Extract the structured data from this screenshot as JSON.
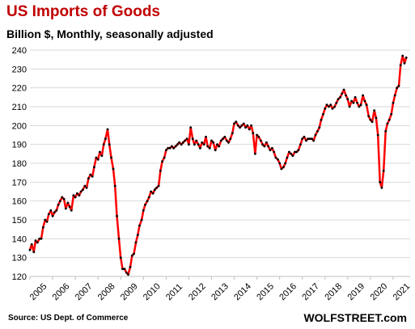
{
  "chart_data": {
    "type": "line",
    "title": "US Imports of Goods",
    "subtitle": "Billion $, Monthly, seasonally adjusted",
    "xlabel": "",
    "ylabel": "",
    "ylim": [
      120,
      240
    ],
    "yticks": [
      120,
      130,
      140,
      150,
      160,
      170,
      180,
      190,
      200,
      210,
      220,
      230,
      240
    ],
    "xlim": [
      2005.0,
      2021.75
    ],
    "xticks": [
      "2005",
      "2006",
      "2007",
      "2008",
      "2009",
      "2010",
      "2011",
      "2012",
      "2013",
      "2014",
      "2015",
      "2016",
      "2017",
      "2018",
      "2019",
      "2020",
      "2021"
    ],
    "grid": true,
    "line_color": "#ff0000",
    "marker_color": "#000000",
    "series": [
      {
        "name": "",
        "x": [
          2005.0,
          2005.08,
          2005.17,
          2005.25,
          2005.33,
          2005.42,
          2005.5,
          2005.58,
          2005.67,
          2005.75,
          2005.83,
          2005.92,
          2006.0,
          2006.08,
          2006.17,
          2006.25,
          2006.33,
          2006.42,
          2006.5,
          2006.58,
          2006.67,
          2006.75,
          2006.83,
          2006.92,
          2007.0,
          2007.08,
          2007.17,
          2007.25,
          2007.33,
          2007.42,
          2007.5,
          2007.58,
          2007.67,
          2007.75,
          2007.83,
          2007.92,
          2008.0,
          2008.08,
          2008.17,
          2008.25,
          2008.33,
          2008.42,
          2008.5,
          2008.58,
          2008.67,
          2008.75,
          2008.83,
          2008.92,
          2009.0,
          2009.08,
          2009.17,
          2009.25,
          2009.33,
          2009.42,
          2009.5,
          2009.58,
          2009.67,
          2009.75,
          2009.83,
          2009.92,
          2010.0,
          2010.08,
          2010.17,
          2010.25,
          2010.33,
          2010.42,
          2010.5,
          2010.58,
          2010.67,
          2010.75,
          2010.83,
          2010.92,
          2011.0,
          2011.08,
          2011.17,
          2011.25,
          2011.33,
          2011.42,
          2011.5,
          2011.58,
          2011.67,
          2011.75,
          2011.83,
          2011.92,
          2012.0,
          2012.08,
          2012.17,
          2012.25,
          2012.33,
          2012.42,
          2012.5,
          2012.58,
          2012.67,
          2012.75,
          2012.83,
          2012.92,
          2013.0,
          2013.08,
          2013.17,
          2013.25,
          2013.33,
          2013.42,
          2013.5,
          2013.58,
          2013.67,
          2013.75,
          2013.83,
          2013.92,
          2014.0,
          2014.08,
          2014.17,
          2014.25,
          2014.33,
          2014.42,
          2014.5,
          2014.58,
          2014.67,
          2014.75,
          2014.83,
          2014.92,
          2015.0,
          2015.08,
          2015.17,
          2015.25,
          2015.33,
          2015.42,
          2015.5,
          2015.58,
          2015.67,
          2015.75,
          2015.83,
          2015.92,
          2016.0,
          2016.08,
          2016.17,
          2016.25,
          2016.33,
          2016.42,
          2016.5,
          2016.58,
          2016.67,
          2016.75,
          2016.83,
          2016.92,
          2017.0,
          2017.08,
          2017.17,
          2017.25,
          2017.33,
          2017.42,
          2017.5,
          2017.58,
          2017.67,
          2017.75,
          2017.83,
          2017.92,
          2018.0,
          2018.08,
          2018.17,
          2018.25,
          2018.33,
          2018.42,
          2018.5,
          2018.58,
          2018.67,
          2018.75,
          2018.83,
          2018.92,
          2019.0,
          2019.08,
          2019.17,
          2019.25,
          2019.33,
          2019.42,
          2019.5,
          2019.58,
          2019.67,
          2019.75,
          2019.83,
          2019.92,
          2020.0,
          2020.08,
          2020.17,
          2020.25,
          2020.33,
          2020.42,
          2020.5,
          2020.58,
          2020.67,
          2020.75,
          2020.83,
          2020.92,
          2021.0,
          2021.08,
          2021.17,
          2021.25,
          2021.33,
          2021.42,
          2021.5,
          2021.58
        ],
        "values": [
          134,
          137,
          133,
          139,
          138,
          140,
          140,
          146,
          150,
          149,
          153,
          155,
          152,
          154,
          155,
          158,
          160,
          162,
          161,
          156,
          159,
          157,
          155,
          163,
          162,
          164,
          163,
          165,
          166,
          168,
          167,
          172,
          174,
          173,
          178,
          183,
          182,
          186,
          184,
          190,
          193,
          198,
          190,
          183,
          177,
          168,
          152,
          140,
          130,
          124,
          124,
          122,
          121,
          125,
          131,
          132,
          138,
          142,
          147,
          150,
          155,
          158,
          160,
          162,
          165,
          164,
          166,
          167,
          168,
          176,
          181,
          183,
          187,
          188,
          188,
          189,
          188,
          189,
          190,
          191,
          190,
          191,
          192,
          193,
          190,
          199,
          193,
          190,
          192,
          190,
          188,
          191,
          190,
          194,
          189,
          188,
          192,
          191,
          187,
          190,
          189,
          192,
          193,
          194,
          192,
          191,
          193,
          196,
          201,
          202,
          200,
          199,
          200,
          201,
          199,
          200,
          198,
          200,
          196,
          185,
          195,
          194,
          192,
          190,
          189,
          191,
          189,
          187,
          188,
          186,
          183,
          182,
          180,
          177,
          178,
          180,
          183,
          186,
          185,
          184,
          186,
          186,
          187,
          190,
          193,
          194,
          192,
          193,
          193,
          193,
          192,
          195,
          197,
          199,
          203,
          206,
          209,
          211,
          210,
          211,
          209,
          210,
          212,
          214,
          215,
          217,
          219,
          216,
          214,
          210,
          213,
          212,
          215,
          212,
          210,
          211,
          216,
          213,
          211,
          205,
          203,
          202,
          208,
          204,
          195,
          170,
          167,
          176,
          197,
          201,
          203,
          206,
          212,
          216,
          220,
          221,
          232,
          237,
          233,
          236
        ]
      }
    ]
  },
  "footer": {
    "source": "Source: US Dept. of Commerce",
    "brand": "WOLFSTREET.com"
  }
}
